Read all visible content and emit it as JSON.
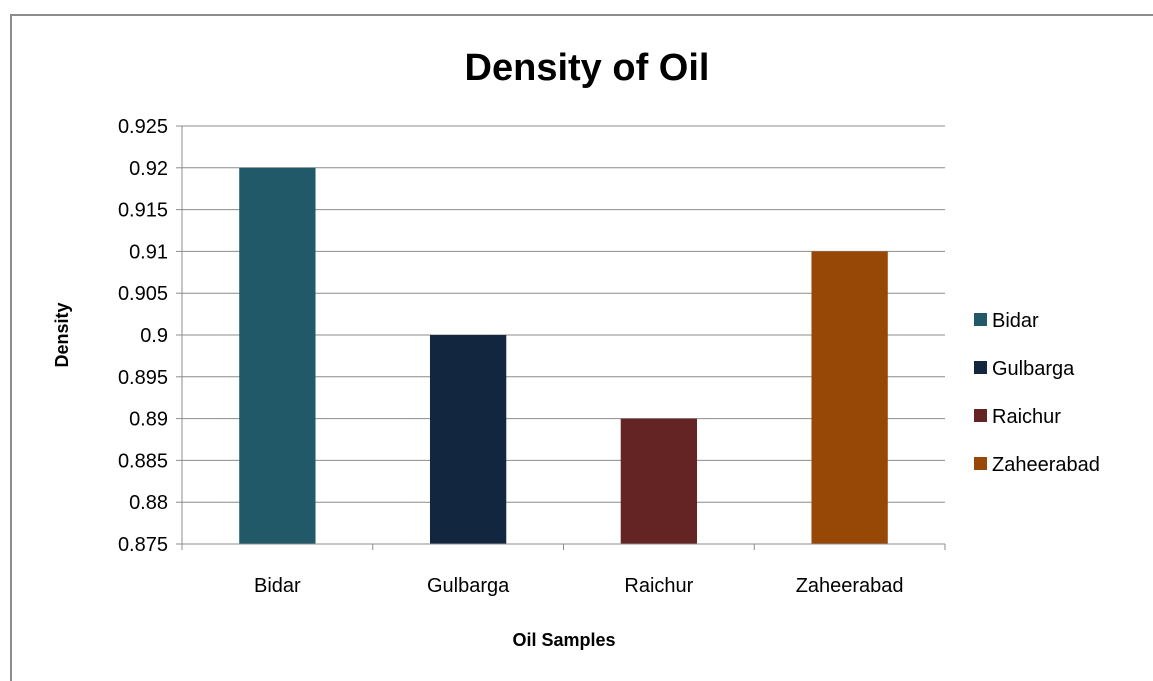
{
  "chart_data": {
    "type": "bar",
    "title": "Density of Oil",
    "xlabel": "Oil Samples",
    "ylabel": "Density",
    "categories": [
      "Bidar",
      "Gulbarga",
      "Raichur",
      "Zaheerabad"
    ],
    "values": [
      0.92,
      0.9,
      0.89,
      0.91
    ],
    "colors": [
      "#215968",
      "#13263f",
      "#632423",
      "#984806"
    ],
    "ylim": [
      0.875,
      0.925
    ],
    "yticks": [
      "0.875",
      "0.88",
      "0.885",
      "0.89",
      "0.895",
      "0.9",
      "0.905",
      "0.91",
      "0.915",
      "0.92",
      "0.925"
    ],
    "grid": true,
    "legend": {
      "position": "right",
      "entries": [
        "Bidar",
        "Gulbarga",
        "Raichur",
        "Zaheerabad"
      ]
    }
  }
}
